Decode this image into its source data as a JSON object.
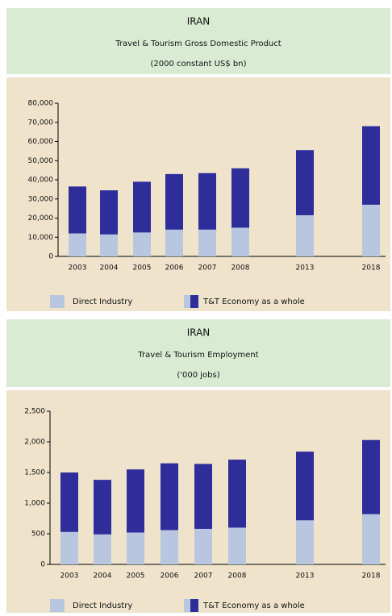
{
  "chart_data": [
    {
      "type": "bar",
      "title": "IRAN",
      "subtitle": "Travel & Tourism Gross Domestic Product",
      "unit": "(2000 constant US$ bn)",
      "categories": [
        "2003",
        "2004",
        "2005",
        "2006",
        "2007",
        "2008",
        "2013",
        "2018"
      ],
      "series": [
        {
          "name": "T&T Economy as a whole",
          "color": "#2e2d9a",
          "values": [
            36500,
            34500,
            39000,
            43000,
            43500,
            46000,
            55500,
            68000
          ]
        },
        {
          "name": "Direct Industry",
          "color": "#b8c6e0",
          "values": [
            12000,
            11500,
            12500,
            14000,
            14000,
            15000,
            21500,
            27000
          ]
        }
      ],
      "ylim": [
        0,
        80000
      ],
      "yticks": [
        0,
        {
          "value": 10000,
          "label": "10,000"
        },
        {
          "value": 20000,
          "label": "20,000"
        },
        {
          "value": 30000,
          "label": "30,000"
        },
        {
          "value": 40000,
          "label": "40,000"
        },
        {
          "value": 50000,
          "label": "50,000"
        },
        {
          "value": 60000,
          "label": "60,000"
        },
        {
          "value": 70000,
          "label": "70,000"
        },
        {
          "value": 80000,
          "label": "80,000"
        }
      ]
    },
    {
      "type": "bar",
      "title": "IRAN",
      "subtitle": "Travel & Tourism Employment",
      "unit": "('000 jobs)",
      "categories": [
        "2003",
        "2004",
        "2005",
        "2006",
        "2007",
        "2008",
        "2013",
        "2018"
      ],
      "series": [
        {
          "name": "T&T Economy as a whole",
          "color": "#2e2d9a",
          "values": [
            1500,
            1380,
            1550,
            1650,
            1640,
            1710,
            1840,
            2030
          ]
        },
        {
          "name": "Direct Industry",
          "color": "#b8c6e0",
          "values": [
            530,
            490,
            520,
            560,
            580,
            600,
            720,
            820
          ]
        }
      ],
      "ylim": [
        0,
        2500
      ],
      "yticks": [
        0,
        500,
        {
          "value": 1000,
          "label": "1,000"
        },
        {
          "value": 1500,
          "label": "1,500"
        },
        {
          "value": 2000,
          "label": "2,000"
        },
        {
          "value": 2500,
          "label": "2,500"
        }
      ]
    }
  ]
}
